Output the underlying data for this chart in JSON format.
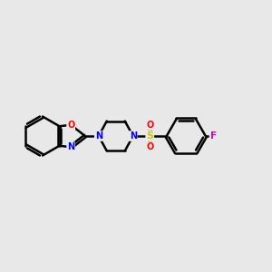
{
  "background_color": "#e8e8e8",
  "bond_color": "#000000",
  "bond_width": 1.8,
  "atom_colors": {
    "N": "#0000ff",
    "O": "#ff0000",
    "F": "#cc00cc",
    "S": "#cccc00",
    "C": "#000000"
  },
  "figsize": [
    3.0,
    3.0
  ],
  "dpi": 100,
  "xlim": [
    0,
    10
  ],
  "ylim": [
    3.5,
    6.5
  ]
}
